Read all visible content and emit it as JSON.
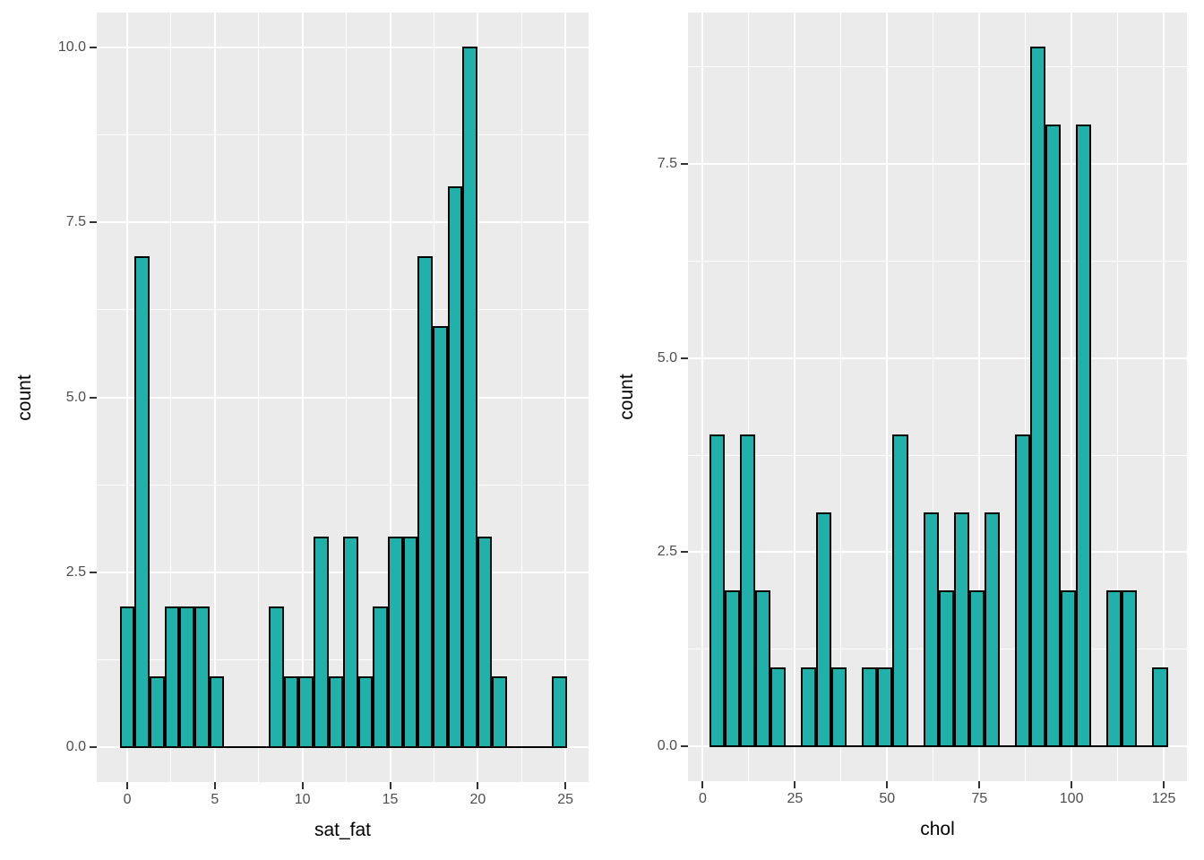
{
  "colors": {
    "bar_fill": "#20B2AA",
    "bar_stroke": "#000000",
    "panel_bg": "#EBEBEB",
    "grid": "#FFFFFF",
    "tick_label": "#4D4D4D",
    "axis_title": "#000000",
    "background": "#FFFFFF"
  },
  "chart_data": [
    {
      "type": "bar",
      "subtype": "histogram",
      "title": "",
      "xlabel": "sat_fat",
      "ylabel": "count",
      "x_tick_values": [
        0,
        5,
        10,
        15,
        20,
        25
      ],
      "x_tick_labels": [
        "0",
        "5",
        "10",
        "15",
        "20",
        "25"
      ],
      "y_tick_values": [
        0,
        2.5,
        5,
        7.5,
        10
      ],
      "y_tick_labels": [
        "0.0",
        "2.5",
        "5.0",
        "7.5",
        "10.0"
      ],
      "xlim": [
        -1.74,
        26.32
      ],
      "ylim": [
        -0.5,
        10.5
      ],
      "grid": true,
      "legend": "none",
      "bin_width": 0.85,
      "bin_centers": [
        0,
        0.85,
        1.7,
        2.55,
        3.4,
        4.25,
        5.1,
        5.95,
        6.8,
        7.65,
        8.5,
        9.35,
        10.2,
        11.05,
        11.9,
        12.75,
        13.6,
        14.45,
        15.3,
        16.15,
        17.0,
        17.85,
        18.7,
        19.55,
        20.4,
        21.25,
        22.1,
        22.95,
        23.8,
        24.65
      ],
      "counts": [
        2,
        7,
        1,
        2,
        2,
        2,
        1,
        0,
        0,
        0,
        2,
        1,
        1,
        3,
        1,
        3,
        1,
        2,
        3,
        3,
        7,
        6,
        8,
        10,
        3,
        1,
        0,
        0,
        0,
        1
      ]
    },
    {
      "type": "bar",
      "subtype": "histogram",
      "title": "",
      "xlabel": "chol",
      "ylabel": "count",
      "x_tick_values": [
        0,
        25,
        50,
        75,
        100,
        125
      ],
      "x_tick_labels": [
        "0",
        "25",
        "50",
        "75",
        "100",
        "125"
      ],
      "y_tick_values": [
        0,
        2.5,
        5,
        7.5
      ],
      "y_tick_labels": [
        "0.0",
        "2.5",
        "5.0",
        "7.5"
      ],
      "xlim": [
        -4.0,
        131.3
      ],
      "ylim": [
        -0.45,
        9.45
      ],
      "grid": true,
      "legend": "none",
      "bin_width": 4.144,
      "bin_centers": [
        3.84,
        7.98,
        12.13,
        16.27,
        20.42,
        24.56,
        28.7,
        32.85,
        36.99,
        41.14,
        45.28,
        49.42,
        53.57,
        57.71,
        61.86,
        66.0,
        70.14,
        74.29,
        78.43,
        82.58,
        86.72,
        90.86,
        95.01,
        99.15,
        103.3,
        107.44,
        111.58,
        115.73,
        119.87,
        124.02
      ],
      "counts": [
        4,
        2,
        4,
        2,
        1,
        0,
        1,
        3,
        1,
        0,
        1,
        1,
        4,
        0,
        3,
        2,
        3,
        2,
        3,
        0,
        4,
        9,
        8,
        2,
        8,
        0,
        2,
        2,
        0,
        1
      ]
    }
  ]
}
